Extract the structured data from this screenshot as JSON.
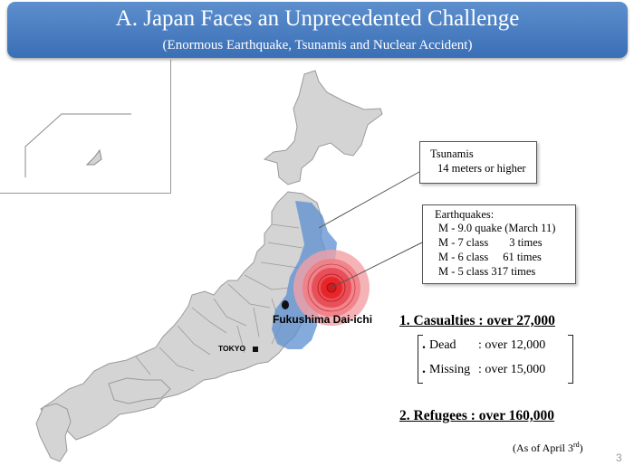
{
  "header": {
    "title": "A. Japan Faces an Unprecedented Challenge",
    "subtitle": "(Enormous Earthquake, Tsunamis and Nuclear Accident)"
  },
  "map": {
    "fukushima_label": "Fukushima Dai-ichi",
    "tokyo_label": "TOKYO",
    "colors": {
      "land": "#d4d4d4",
      "border": "#9a9a9a",
      "tsunami_zone": "#5b8fd0",
      "epicenter": "#e8262a"
    }
  },
  "tsunami_callout": {
    "title": "Tsunamis",
    "detail": "14 meters or higher"
  },
  "earthquake_callout": {
    "title": "Earthquakes:",
    "rows": [
      {
        "mag": "M - 9.0 quake",
        "info": "(March 11)"
      },
      {
        "mag": "M - 7 class",
        "info": "3 times"
      },
      {
        "mag": "M - 6 class",
        "info": "61 times"
      },
      {
        "mag": "M - 5 class",
        "info": "317 times"
      }
    ]
  },
  "casualties": {
    "heading": "1. Casualties : over  27,000",
    "items": [
      {
        "bullet": "・",
        "label": "Dead",
        "value": ":  over  12,000"
      },
      {
        "bullet": "・",
        "label": "Missing",
        "value": ":  over  15,000"
      }
    ]
  },
  "refugees": {
    "heading": "2. Refugees  :  over  160,000"
  },
  "as_of": {
    "text": "(As of April 3",
    "sup": "rd",
    "close": ")"
  },
  "page_number": "3"
}
